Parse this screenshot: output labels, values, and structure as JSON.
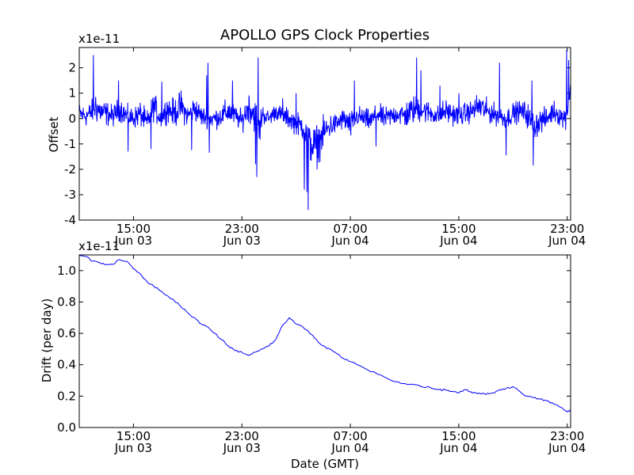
{
  "chart_data": [
    {
      "type": "line",
      "title": "APOLLO GPS Clock Properties",
      "ylabel": "Offset",
      "xlabel": "",
      "scale_label": "x1e-11",
      "line_color": "#0000ff",
      "ylim": [
        -4,
        2.8
      ],
      "xlim": [
        0,
        36.25
      ],
      "yticks": [
        -4,
        -3,
        -2,
        -1,
        0,
        1,
        2
      ],
      "ytick_labels": [
        "-4",
        "-3",
        "-2",
        "-1",
        "0",
        "1",
        "2"
      ],
      "xticks": [
        4,
        12,
        20,
        28,
        36
      ],
      "xtick_labels": [
        [
          "15:00",
          "Jun 03"
        ],
        [
          "23:00",
          "Jun 03"
        ],
        [
          "07:00",
          "Jun 04"
        ],
        [
          "15:00",
          "Jun 04"
        ],
        [
          "23:00",
          "Jun 04"
        ]
      ],
      "series": [
        {
          "name": "Offset",
          "x": [
            0,
            0.5,
            1.0,
            1.2,
            1.5,
            2.0,
            2.5,
            3.0,
            3.5,
            4.0,
            4.5,
            5.0,
            5.5,
            6.0,
            6.5,
            7.0,
            7.5,
            8.0,
            8.5,
            9.0,
            9.5,
            10.0,
            10.5,
            11.0,
            11.5,
            12.0,
            12.5,
            13.0,
            13.3,
            13.5,
            14.0,
            14.5,
            15.0,
            15.5,
            16.0,
            16.5,
            17.0,
            17.5,
            18.0,
            18.5,
            19.0,
            19.5,
            20.0,
            20.5,
            21.0,
            21.5,
            22.0,
            22.5,
            23.0,
            23.5,
            24.0,
            24.5,
            25.0,
            25.5,
            26.0,
            26.5,
            27.0,
            27.5,
            28.0,
            28.5,
            29.0,
            29.5,
            30.0,
            30.5,
            31.0,
            31.5,
            32.0,
            32.5,
            33.0,
            33.5,
            34.0,
            34.5,
            35.0,
            35.5,
            35.8,
            36.0,
            36.25
          ],
          "center": [
            0.2,
            0.1,
            0.3,
            0.5,
            0.3,
            0.2,
            0.1,
            0.4,
            0.1,
            0.0,
            0.2,
            -0.2,
            0.5,
            0.0,
            0.4,
            0.2,
            0.5,
            0.1,
            0.4,
            0.1,
            0.0,
            0.0,
            0.1,
            0.3,
            0.1,
            -0.1,
            0.5,
            0.1,
            -0.5,
            0.2,
            0.0,
            0.3,
            0.1,
            0.0,
            -0.2,
            -0.3,
            -1.0,
            -1.1,
            -0.6,
            -0.3,
            -0.2,
            0.0,
            -0.3,
            0.1,
            0.0,
            -0.1,
            0.2,
            0.0,
            0.1,
            0.2,
            0.1,
            0.3,
            0.4,
            0.3,
            0.2,
            0.1,
            0.3,
            0.2,
            0.1,
            0.2,
            0.3,
            0.5,
            0.3,
            0.2,
            0.1,
            0.0,
            0.2,
            0.3,
            0.2,
            -0.3,
            -0.1,
            0.0,
            0.3,
            0.1,
            0.0,
            0.3,
            1.3
          ],
          "amplitude": [
            0.6,
            0.6,
            0.7,
            1.0,
            0.8,
            0.7,
            0.6,
            0.7,
            0.6,
            0.6,
            0.7,
            0.7,
            0.8,
            0.6,
            0.7,
            0.8,
            0.9,
            0.6,
            0.7,
            0.6,
            0.5,
            0.6,
            0.6,
            0.8,
            0.6,
            0.6,
            0.9,
            1.0,
            1.1,
            0.6,
            0.4,
            0.5,
            0.5,
            0.6,
            0.6,
            0.8,
            1.1,
            1.2,
            0.9,
            0.7,
            0.6,
            0.6,
            0.8,
            0.6,
            0.6,
            0.6,
            0.6,
            0.6,
            0.6,
            0.6,
            0.8,
            0.8,
            0.8,
            0.7,
            0.6,
            0.6,
            0.7,
            0.6,
            0.6,
            0.6,
            0.6,
            0.8,
            0.7,
            0.6,
            0.6,
            0.6,
            0.6,
            0.6,
            0.7,
            0.8,
            0.7,
            0.6,
            0.6,
            0.6,
            0.6,
            0.8,
            0.6
          ],
          "spikes": [
            [
              1.05,
              2.5
            ],
            [
              2.9,
              1.5
            ],
            [
              5.3,
              -1.2
            ],
            [
              6.1,
              1.45
            ],
            [
              9.5,
              2.2
            ],
            [
              9.6,
              -1.35
            ],
            [
              9.4,
              1.7
            ],
            [
              11.3,
              1.5
            ],
            [
              13.2,
              2.4
            ],
            [
              13.1,
              -2.3
            ],
            [
              13.0,
              -1.8
            ],
            [
              15.0,
              0.8
            ],
            [
              16.0,
              1.0
            ],
            [
              16.6,
              -2.8
            ],
            [
              16.9,
              -3.6
            ],
            [
              16.8,
              -2.9
            ],
            [
              20.3,
              1.5
            ],
            [
              24.9,
              2.4
            ],
            [
              25.2,
              1.9
            ],
            [
              26.6,
              1.3
            ],
            [
              28.0,
              1.0
            ],
            [
              31.0,
              2.2
            ],
            [
              31.5,
              -1.45
            ],
            [
              33.5,
              -1.85
            ],
            [
              33.4,
              1.5
            ],
            [
              35.95,
              2.7
            ],
            [
              36.1,
              2.3
            ],
            [
              21.9,
              -1.1
            ],
            [
              3.6,
              -1.3
            ],
            [
              8.3,
              -1.25
            ]
          ]
        }
      ]
    },
    {
      "type": "line",
      "title": "",
      "ylabel": "Drift (per day)",
      "xlabel": "Date (GMT)",
      "scale_label": "x1e-11",
      "line_color": "#0000ff",
      "ylim": [
        0.0,
        1.1
      ],
      "xlim": [
        0,
        36.25
      ],
      "yticks": [
        0.0,
        0.2,
        0.4,
        0.6,
        0.8,
        1.0
      ],
      "ytick_labels": [
        "0.0",
        "0.2",
        "0.4",
        "0.6",
        "0.8",
        "1.0"
      ],
      "xticks": [
        4,
        12,
        20,
        28,
        36
      ],
      "xtick_labels": [
        [
          "15:00",
          "Jun 03"
        ],
        [
          "23:00",
          "Jun 03"
        ],
        [
          "07:00",
          "Jun 04"
        ],
        [
          "15:00",
          "Jun 04"
        ],
        [
          "23:00",
          "Jun 04"
        ]
      ],
      "series": [
        {
          "name": "Drift",
          "x": [
            0,
            0.5,
            1.0,
            1.5,
            2.0,
            2.5,
            3.0,
            3.5,
            4.0,
            4.5,
            5.0,
            5.5,
            6.0,
            6.5,
            7.0,
            7.5,
            8.0,
            8.5,
            9.0,
            9.5,
            10.0,
            10.5,
            11.0,
            11.5,
            12.0,
            12.5,
            13.0,
            13.5,
            14.0,
            14.5,
            15.0,
            15.5,
            16.0,
            16.5,
            17.0,
            17.5,
            18.0,
            18.5,
            19.0,
            19.5,
            20.0,
            21.0,
            22.0,
            23.0,
            24.0,
            25.0,
            26.0,
            26.5,
            27.0,
            27.5,
            28.0,
            28.5,
            29.0,
            29.5,
            30.0,
            30.5,
            31.0,
            31.5,
            32.0,
            32.5,
            33.0,
            33.5,
            34.0,
            34.5,
            35.0,
            35.5,
            36.0,
            36.25
          ],
          "y": [
            1.1,
            1.09,
            1.06,
            1.05,
            1.04,
            1.04,
            1.07,
            1.06,
            1.01,
            0.98,
            0.93,
            0.9,
            0.87,
            0.84,
            0.81,
            0.77,
            0.73,
            0.7,
            0.66,
            0.64,
            0.6,
            0.56,
            0.52,
            0.49,
            0.48,
            0.46,
            0.48,
            0.5,
            0.52,
            0.56,
            0.65,
            0.7,
            0.66,
            0.64,
            0.6,
            0.56,
            0.52,
            0.5,
            0.47,
            0.44,
            0.42,
            0.38,
            0.34,
            0.3,
            0.28,
            0.27,
            0.25,
            0.24,
            0.24,
            0.23,
            0.22,
            0.24,
            0.22,
            0.22,
            0.21,
            0.22,
            0.24,
            0.25,
            0.26,
            0.23,
            0.2,
            0.19,
            0.18,
            0.17,
            0.15,
            0.13,
            0.1,
            0.11
          ]
        }
      ]
    }
  ]
}
